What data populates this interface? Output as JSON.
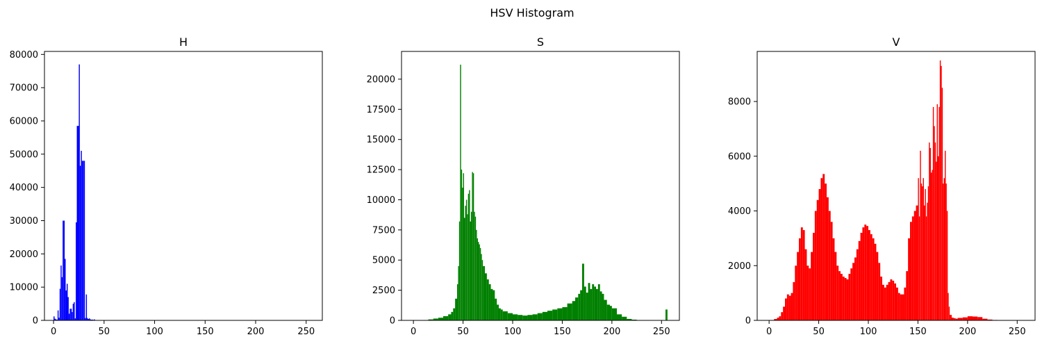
{
  "figure": {
    "suptitle": "HSV Histogram"
  },
  "chart_data": [
    {
      "type": "bar",
      "title": "H",
      "color": "#0000ff",
      "xlim": [
        -9,
        266
      ],
      "ylim": [
        0,
        80900
      ],
      "xticks": [
        0,
        50,
        100,
        150,
        200,
        250
      ],
      "yticks": [
        0,
        10000,
        20000,
        30000,
        40000,
        50000,
        60000,
        70000,
        80000
      ],
      "x": [
        0,
        1,
        2,
        3,
        4,
        5,
        6,
        7,
        8,
        9,
        10,
        11,
        12,
        13,
        14,
        15,
        16,
        17,
        18,
        19,
        20,
        21,
        22,
        23,
        24,
        25,
        26,
        27,
        28,
        29,
        30,
        31,
        32,
        33,
        34,
        35,
        36,
        37,
        38,
        39,
        40,
        41,
        42,
        43,
        44,
        45,
        46,
        47,
        48,
        49,
        50
      ],
      "values": [
        1200,
        500,
        300,
        200,
        3000,
        800,
        9500,
        16500,
        13000,
        30000,
        30000,
        18500,
        9000,
        11000,
        7000,
        2000,
        3500,
        3500,
        2500,
        5000,
        5500,
        600,
        29500,
        58500,
        58500,
        77000,
        46500,
        51000,
        48000,
        48000,
        48000,
        700,
        7800,
        700,
        400,
        600,
        300,
        200,
        250,
        150,
        300,
        100,
        80,
        60,
        50,
        40,
        30,
        25,
        20,
        15,
        10
      ]
    },
    {
      "type": "bar",
      "title": "S",
      "color": "#008000",
      "xlim": [
        -12,
        268
      ],
      "ylim": [
        0,
        22300
      ],
      "xticks": [
        0,
        50,
        100,
        150,
        200,
        250
      ],
      "yticks": [
        0,
        2500,
        5000,
        7500,
        10000,
        12500,
        15000,
        17500,
        20000
      ],
      "x": [
        0,
        5,
        10,
        15,
        20,
        25,
        30,
        35,
        38,
        40,
        42,
        44,
        45,
        46,
        47,
        48,
        49,
        50,
        51,
        52,
        53,
        54,
        55,
        56,
        57,
        58,
        59,
        60,
        61,
        62,
        63,
        64,
        65,
        66,
        67,
        68,
        69,
        70,
        72,
        74,
        76,
        78,
        80,
        82,
        84,
        86,
        88,
        90,
        95,
        100,
        105,
        110,
        115,
        120,
        125,
        130,
        135,
        140,
        145,
        150,
        155,
        160,
        163,
        166,
        168,
        170,
        172,
        174,
        176,
        178,
        180,
        182,
        184,
        186,
        188,
        190,
        192,
        195,
        198,
        200,
        205,
        210,
        215,
        220,
        225,
        230,
        240,
        250,
        254,
        255
      ],
      "values": [
        0,
        10,
        30,
        80,
        150,
        220,
        350,
        500,
        700,
        1000,
        1800,
        3000,
        4500,
        8200,
        21200,
        12500,
        11000,
        12200,
        8500,
        9500,
        10000,
        8800,
        10500,
        10800,
        8200,
        9000,
        12300,
        12200,
        9000,
        8600,
        7500,
        6800,
        6500,
        6300,
        6000,
        5500,
        5000,
        4500,
        3900,
        3400,
        3000,
        2600,
        2500,
        1800,
        1300,
        1000,
        900,
        750,
        600,
        500,
        450,
        400,
        450,
        500,
        600,
        700,
        800,
        900,
        1000,
        1100,
        1400,
        1600,
        1900,
        2200,
        2500,
        4700,
        2800,
        2300,
        3100,
        2600,
        3000,
        2800,
        2600,
        3000,
        2400,
        2200,
        1700,
        1300,
        1200,
        1000,
        500,
        300,
        120,
        60,
        30,
        10,
        5,
        0,
        900,
        900
      ]
    },
    {
      "type": "bar",
      "title": "V",
      "color": "#ff0000",
      "xlim": [
        -12,
        268
      ],
      "ylim": [
        0,
        9830
      ],
      "xticks": [
        0,
        50,
        100,
        150,
        200,
        250
      ],
      "yticks": [
        0,
        2000,
        4000,
        6000,
        8000
      ],
      "x": [
        0,
        5,
        8,
        10,
        12,
        14,
        16,
        18,
        20,
        22,
        24,
        26,
        28,
        30,
        32,
        34,
        36,
        38,
        40,
        42,
        44,
        46,
        48,
        50,
        52,
        54,
        56,
        58,
        60,
        62,
        64,
        66,
        68,
        70,
        72,
        74,
        76,
        78,
        80,
        82,
        84,
        86,
        88,
        90,
        92,
        94,
        96,
        98,
        100,
        102,
        104,
        106,
        108,
        110,
        112,
        114,
        116,
        118,
        120,
        122,
        124,
        126,
        128,
        130,
        132,
        134,
        136,
        138,
        140,
        142,
        144,
        146,
        148,
        150,
        151,
        152,
        153,
        154,
        155,
        156,
        157,
        158,
        159,
        160,
        161,
        162,
        163,
        164,
        165,
        166,
        167,
        168,
        169,
        170,
        171,
        172,
        173,
        174,
        175,
        176,
        177,
        178,
        179,
        180,
        181,
        182,
        184,
        186,
        188,
        190,
        195,
        200,
        205,
        210,
        215,
        220,
        225,
        230,
        240,
        250
      ],
      "values": [
        0,
        50,
        100,
        150,
        300,
        500,
        800,
        950,
        900,
        1000,
        1400,
        2000,
        2500,
        3000,
        3400,
        3300,
        2600,
        2000,
        1900,
        2500,
        3200,
        4000,
        4400,
        4800,
        5200,
        5350,
        5000,
        4500,
        4000,
        3600,
        3000,
        2500,
        2000,
        1800,
        1700,
        1600,
        1550,
        1500,
        1700,
        1900,
        2100,
        2300,
        2600,
        2900,
        3200,
        3400,
        3500,
        3450,
        3300,
        3150,
        3000,
        2800,
        2500,
        2100,
        1600,
        1300,
        1200,
        1300,
        1400,
        1500,
        1450,
        1350,
        1200,
        1000,
        950,
        950,
        1200,
        1800,
        3000,
        3600,
        3800,
        4000,
        4200,
        5200,
        3800,
        6200,
        5000,
        4900,
        5200,
        4200,
        4800,
        3800,
        4300,
        4900,
        6500,
        6300,
        5400,
        5500,
        7800,
        7100,
        6500,
        5800,
        7900,
        6000,
        7800,
        9500,
        9300,
        8500,
        5000,
        5200,
        6200,
        5000,
        4000,
        1000,
        500,
        200,
        100,
        80,
        60,
        90,
        110,
        150,
        140,
        120,
        60,
        30,
        15,
        5,
        0,
        0
      ]
    }
  ]
}
